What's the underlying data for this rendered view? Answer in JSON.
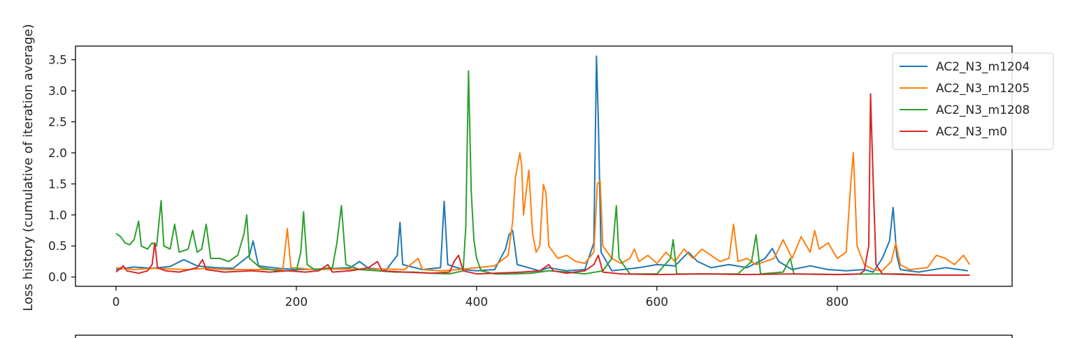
{
  "chart_data": {
    "type": "line",
    "ylabel": "Loss history (cumulative of iteration average)",
    "xlabel": "",
    "xlim": [
      -45,
      994
    ],
    "ylim": [
      -0.15,
      3.72
    ],
    "xticks": [
      0,
      200,
      400,
      600,
      800
    ],
    "yticks": [
      0.0,
      0.5,
      1.0,
      1.5,
      2.0,
      2.5,
      3.0,
      3.5
    ],
    "xtick_labels": [
      "0",
      "200",
      "400",
      "600",
      "800"
    ],
    "ytick_labels": [
      "0.0",
      "0.5",
      "1.0",
      "1.5",
      "2.0",
      "2.5",
      "3.0",
      "3.5"
    ],
    "grid": false,
    "legend_position": "top-right",
    "series": [
      {
        "name": "AC2_N3_m1204",
        "color": "#1f77b4",
        "points": [
          [
            0,
            0.12
          ],
          [
            20,
            0.16
          ],
          [
            40,
            0.14
          ],
          [
            60,
            0.17
          ],
          [
            75,
            0.28
          ],
          [
            90,
            0.18
          ],
          [
            110,
            0.15
          ],
          [
            130,
            0.14
          ],
          [
            148,
            0.35
          ],
          [
            152,
            0.58
          ],
          [
            158,
            0.18
          ],
          [
            180,
            0.14
          ],
          [
            200,
            0.12
          ],
          [
            230,
            0.13
          ],
          [
            260,
            0.15
          ],
          [
            270,
            0.25
          ],
          [
            280,
            0.14
          ],
          [
            300,
            0.12
          ],
          [
            312,
            0.35
          ],
          [
            315,
            0.88
          ],
          [
            318,
            0.2
          ],
          [
            340,
            0.12
          ],
          [
            360,
            0.15
          ],
          [
            364,
            1.22
          ],
          [
            368,
            0.2
          ],
          [
            385,
            0.12
          ],
          [
            400,
            0.1
          ],
          [
            420,
            0.12
          ],
          [
            432,
            0.45
          ],
          [
            436,
            0.68
          ],
          [
            440,
            0.75
          ],
          [
            445,
            0.2
          ],
          [
            470,
            0.1
          ],
          [
            480,
            0.15
          ],
          [
            500,
            0.1
          ],
          [
            520,
            0.12
          ],
          [
            530,
            0.55
          ],
          [
            533,
            3.56
          ],
          [
            535,
            2.55
          ],
          [
            538,
            0.4
          ],
          [
            550,
            0.1
          ],
          [
            580,
            0.15
          ],
          [
            600,
            0.2
          ],
          [
            620,
            0.18
          ],
          [
            635,
            0.4
          ],
          [
            645,
            0.25
          ],
          [
            660,
            0.15
          ],
          [
            680,
            0.2
          ],
          [
            700,
            0.15
          ],
          [
            720,
            0.3
          ],
          [
            728,
            0.46
          ],
          [
            735,
            0.25
          ],
          [
            750,
            0.12
          ],
          [
            770,
            0.18
          ],
          [
            790,
            0.12
          ],
          [
            810,
            0.1
          ],
          [
            830,
            0.12
          ],
          [
            840,
            0.08
          ],
          [
            850,
            0.3
          ],
          [
            858,
            0.58
          ],
          [
            862,
            1.12
          ],
          [
            866,
            0.35
          ],
          [
            870,
            0.12
          ],
          [
            890,
            0.08
          ],
          [
            920,
            0.15
          ],
          [
            945,
            0.1
          ]
        ]
      },
      {
        "name": "AC2_N3_m1205",
        "color": "#ff7f0e",
        "points": [
          [
            0,
            0.15
          ],
          [
            20,
            0.12
          ],
          [
            40,
            0.14
          ],
          [
            60,
            0.13
          ],
          [
            80,
            0.12
          ],
          [
            100,
            0.14
          ],
          [
            120,
            0.12
          ],
          [
            150,
            0.12
          ],
          [
            185,
            0.12
          ],
          [
            190,
            0.78
          ],
          [
            194,
            0.15
          ],
          [
            220,
            0.12
          ],
          [
            250,
            0.13
          ],
          [
            280,
            0.12
          ],
          [
            300,
            0.13
          ],
          [
            320,
            0.12
          ],
          [
            335,
            0.3
          ],
          [
            340,
            0.12
          ],
          [
            360,
            0.1
          ],
          [
            380,
            0.12
          ],
          [
            400,
            0.15
          ],
          [
            420,
            0.18
          ],
          [
            435,
            0.35
          ],
          [
            440,
            0.9
          ],
          [
            443,
            1.6
          ],
          [
            448,
            2.0
          ],
          [
            450,
            1.8
          ],
          [
            452,
            1.0
          ],
          [
            456,
            1.5
          ],
          [
            458,
            1.72
          ],
          [
            462,
            0.7
          ],
          [
            466,
            0.4
          ],
          [
            470,
            0.5
          ],
          [
            474,
            1.49
          ],
          [
            477,
            1.35
          ],
          [
            480,
            0.5
          ],
          [
            490,
            0.3
          ],
          [
            500,
            0.35
          ],
          [
            510,
            0.25
          ],
          [
            520,
            0.22
          ],
          [
            530,
            0.4
          ],
          [
            534,
            1.5
          ],
          [
            537,
            1.55
          ],
          [
            540,
            0.5
          ],
          [
            550,
            0.3
          ],
          [
            560,
            0.22
          ],
          [
            570,
            0.3
          ],
          [
            575,
            0.45
          ],
          [
            580,
            0.25
          ],
          [
            590,
            0.35
          ],
          [
            600,
            0.22
          ],
          [
            610,
            0.4
          ],
          [
            620,
            0.25
          ],
          [
            630,
            0.45
          ],
          [
            640,
            0.3
          ],
          [
            650,
            0.45
          ],
          [
            660,
            0.35
          ],
          [
            670,
            0.25
          ],
          [
            680,
            0.3
          ],
          [
            685,
            0.85
          ],
          [
            690,
            0.25
          ],
          [
            700,
            0.3
          ],
          [
            710,
            0.2
          ],
          [
            720,
            0.25
          ],
          [
            730,
            0.3
          ],
          [
            740,
            0.6
          ],
          [
            750,
            0.3
          ],
          [
            760,
            0.65
          ],
          [
            770,
            0.4
          ],
          [
            775,
            0.75
          ],
          [
            780,
            0.45
          ],
          [
            790,
            0.55
          ],
          [
            800,
            0.3
          ],
          [
            810,
            0.4
          ],
          [
            815,
            1.5
          ],
          [
            818,
            2.0
          ],
          [
            822,
            0.5
          ],
          [
            830,
            0.2
          ],
          [
            840,
            0.12
          ],
          [
            850,
            0.1
          ],
          [
            860,
            0.25
          ],
          [
            865,
            0.55
          ],
          [
            870,
            0.2
          ],
          [
            880,
            0.12
          ],
          [
            900,
            0.15
          ],
          [
            910,
            0.35
          ],
          [
            920,
            0.3
          ],
          [
            930,
            0.2
          ],
          [
            940,
            0.35
          ],
          [
            947,
            0.2
          ]
        ]
      },
      {
        "name": "AC2_N3_m1208",
        "color": "#2ca02c",
        "points": [
          [
            0,
            0.7
          ],
          [
            5,
            0.65
          ],
          [
            10,
            0.55
          ],
          [
            15,
            0.52
          ],
          [
            20,
            0.6
          ],
          [
            25,
            0.9
          ],
          [
            28,
            0.5
          ],
          [
            35,
            0.45
          ],
          [
            40,
            0.55
          ],
          [
            45,
            0.5
          ],
          [
            50,
            1.23
          ],
          [
            53,
            0.5
          ],
          [
            60,
            0.45
          ],
          [
            65,
            0.85
          ],
          [
            70,
            0.4
          ],
          [
            80,
            0.45
          ],
          [
            85,
            0.75
          ],
          [
            90,
            0.4
          ],
          [
            95,
            0.45
          ],
          [
            100,
            0.85
          ],
          [
            105,
            0.3
          ],
          [
            115,
            0.3
          ],
          [
            125,
            0.25
          ],
          [
            135,
            0.35
          ],
          [
            142,
            0.7
          ],
          [
            145,
            1.0
          ],
          [
            148,
            0.3
          ],
          [
            160,
            0.15
          ],
          [
            180,
            0.1
          ],
          [
            200,
            0.1
          ],
          [
            205,
            0.4
          ],
          [
            208,
            1.05
          ],
          [
            212,
            0.2
          ],
          [
            220,
            0.12
          ],
          [
            240,
            0.15
          ],
          [
            245,
            0.55
          ],
          [
            250,
            1.15
          ],
          [
            255,
            0.2
          ],
          [
            270,
            0.12
          ],
          [
            290,
            0.1
          ],
          [
            310,
            0.08
          ],
          [
            330,
            0.08
          ],
          [
            350,
            0.06
          ],
          [
            370,
            0.05
          ],
          [
            385,
            0.1
          ],
          [
            388,
            0.8
          ],
          [
            391,
            3.32
          ],
          [
            394,
            1.38
          ],
          [
            397,
            0.6
          ],
          [
            400,
            0.3
          ],
          [
            405,
            0.1
          ],
          [
            420,
            0.05
          ],
          [
            440,
            0.05
          ],
          [
            460,
            0.06
          ],
          [
            480,
            0.1
          ],
          [
            500,
            0.08
          ],
          [
            520,
            0.05
          ],
          [
            540,
            0.1
          ],
          [
            550,
            0.3
          ],
          [
            555,
            1.15
          ],
          [
            558,
            0.3
          ],
          [
            570,
            0.05
          ],
          [
            600,
            0.05
          ],
          [
            615,
            0.3
          ],
          [
            618,
            0.6
          ],
          [
            622,
            0.05
          ],
          [
            650,
            0.05
          ],
          [
            690,
            0.05
          ],
          [
            705,
            0.25
          ],
          [
            710,
            0.68
          ],
          [
            715,
            0.05
          ],
          [
            740,
            0.08
          ],
          [
            748,
            0.3
          ],
          [
            752,
            0.05
          ],
          [
            800,
            0.04
          ],
          [
            840,
            0.05
          ],
          [
            870,
            0.05
          ],
          [
            900,
            0.03
          ],
          [
            947,
            0.03
          ]
        ]
      },
      {
        "name": "AC2_N3_m0",
        "color": "#d62728",
        "points": [
          [
            0,
            0.08
          ],
          [
            8,
            0.18
          ],
          [
            12,
            0.1
          ],
          [
            25,
            0.06
          ],
          [
            35,
            0.1
          ],
          [
            40,
            0.2
          ],
          [
            43,
            0.55
          ],
          [
            46,
            0.15
          ],
          [
            55,
            0.1
          ],
          [
            70,
            0.08
          ],
          [
            90,
            0.15
          ],
          [
            96,
            0.28
          ],
          [
            100,
            0.12
          ],
          [
            120,
            0.08
          ],
          [
            150,
            0.1
          ],
          [
            170,
            0.08
          ],
          [
            190,
            0.1
          ],
          [
            210,
            0.08
          ],
          [
            225,
            0.1
          ],
          [
            235,
            0.2
          ],
          [
            240,
            0.08
          ],
          [
            260,
            0.1
          ],
          [
            280,
            0.15
          ],
          [
            290,
            0.25
          ],
          [
            295,
            0.1
          ],
          [
            320,
            0.08
          ],
          [
            350,
            0.06
          ],
          [
            370,
            0.08
          ],
          [
            375,
            0.25
          ],
          [
            380,
            0.35
          ],
          [
            385,
            0.1
          ],
          [
            400,
            0.05
          ],
          [
            420,
            0.06
          ],
          [
            450,
            0.08
          ],
          [
            470,
            0.1
          ],
          [
            480,
            0.2
          ],
          [
            485,
            0.1
          ],
          [
            500,
            0.06
          ],
          [
            520,
            0.1
          ],
          [
            530,
            0.2
          ],
          [
            535,
            0.35
          ],
          [
            540,
            0.08
          ],
          [
            560,
            0.05
          ],
          [
            600,
            0.04
          ],
          [
            650,
            0.05
          ],
          [
            700,
            0.04
          ],
          [
            750,
            0.05
          ],
          [
            800,
            0.04
          ],
          [
            825,
            0.05
          ],
          [
            830,
            0.1
          ],
          [
            835,
            0.5
          ],
          [
            837,
            2.95
          ],
          [
            840,
            1.5
          ],
          [
            843,
            0.2
          ],
          [
            850,
            0.05
          ],
          [
            900,
            0.03
          ],
          [
            947,
            0.03
          ]
        ]
      }
    ]
  }
}
